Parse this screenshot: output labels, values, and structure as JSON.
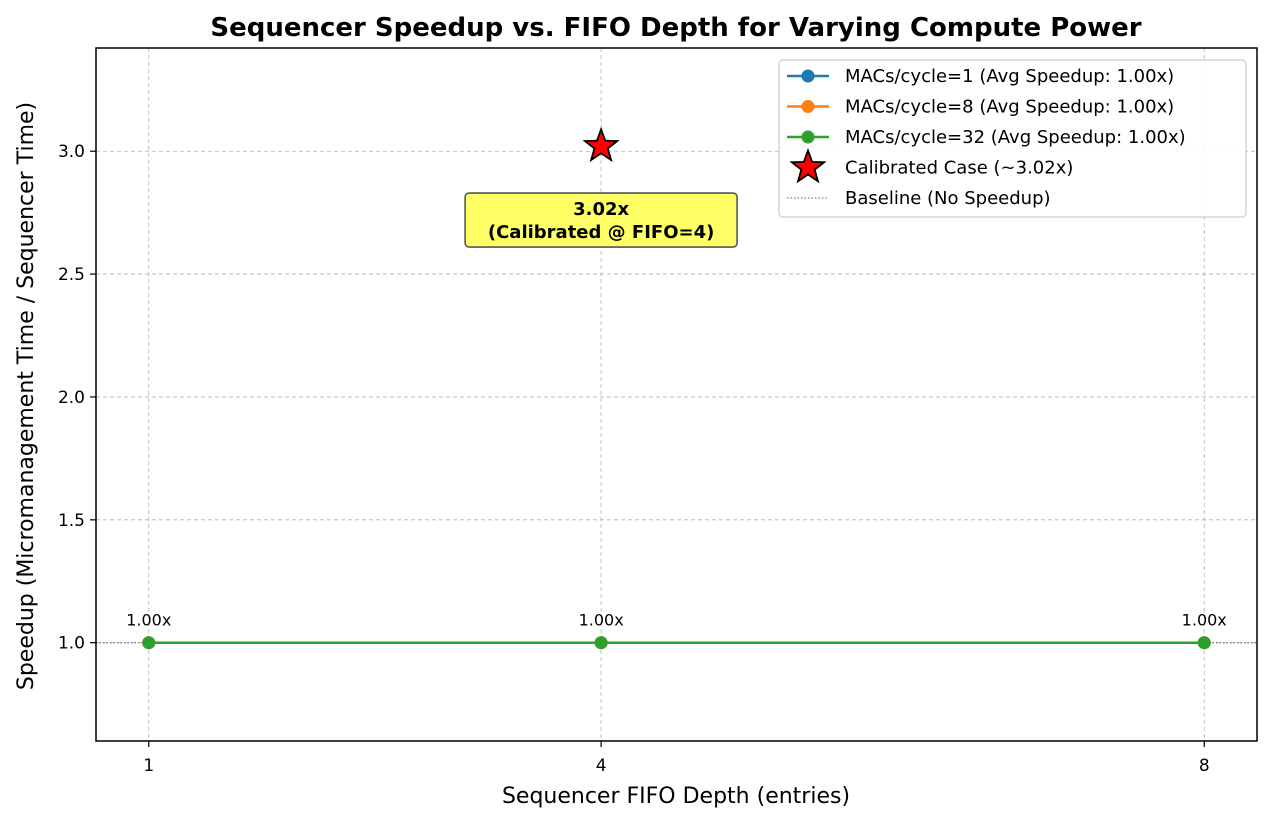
{
  "chart_data": {
    "type": "line",
    "title": "Sequencer Speedup vs. FIFO Depth for Varying Compute Power",
    "xlabel": "Sequencer FIFO Depth (entries)",
    "ylabel": "Speedup (Micromanagement Time / Sequencer Time)",
    "x": [
      1,
      4,
      8
    ],
    "x_tick_labels": [
      "1",
      "4",
      "8"
    ],
    "y_ticks": [
      1.0,
      1.5,
      2.0,
      2.5,
      3.0
    ],
    "y_tick_labels": [
      "1.0",
      "1.5",
      "2.0",
      "2.5",
      "3.0"
    ],
    "xlim": [
      0.65,
      8.35
    ],
    "ylim": [
      0.6,
      3.42
    ],
    "grid": true,
    "legend_position": "top-right",
    "series": [
      {
        "name": "MACs/cycle=1 (Avg Speedup: 1.00x)",
        "values": [
          1.0,
          1.0,
          1.0
        ],
        "color": "#1f77b4",
        "marker": "circle"
      },
      {
        "name": "MACs/cycle=8 (Avg Speedup: 1.00x)",
        "values": [
          1.0,
          1.0,
          1.0
        ],
        "color": "#ff7f0e",
        "marker": "circle"
      },
      {
        "name": "MACs/cycle=32 (Avg Speedup: 1.00x)",
        "values": [
          1.0,
          1.0,
          1.0
        ],
        "color": "#2ca02c",
        "marker": "circle"
      }
    ],
    "point_labels": [
      "1.00x",
      "1.00x",
      "1.00x"
    ],
    "calibrated_point": {
      "name": "Calibrated Case (~3.02x)",
      "x": 4,
      "y": 3.02,
      "color": "#ff0000",
      "marker": "star"
    },
    "baseline": {
      "name": "Baseline (No Speedup)",
      "y": 1.0,
      "color": "#808080",
      "style": "dotted"
    },
    "annotation": {
      "line1": "3.02x",
      "line2": "(Calibrated @ FIFO=4)",
      "x": 4,
      "y": 2.72,
      "background": "#ffff66"
    }
  }
}
